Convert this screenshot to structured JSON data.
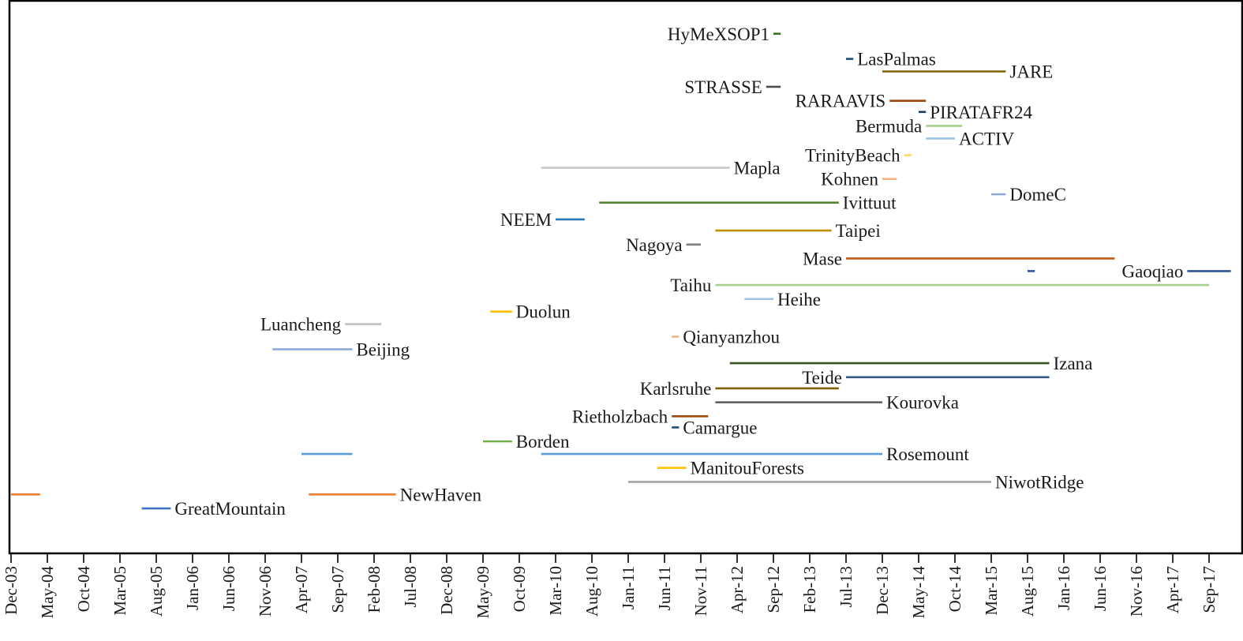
{
  "chart_data": {
    "type": "timeline",
    "xlim": [
      "2003-12",
      "2017-12"
    ],
    "tick_labels": [
      "Dec-03",
      "May-04",
      "Oct-04",
      "Mar-05",
      "Aug-05",
      "Jan-06",
      "Jun-06",
      "Nov-06",
      "Apr-07",
      "Sep-07",
      "Feb-08",
      "Jul-08",
      "Dec-08",
      "May-09",
      "Oct-09",
      "Mar-10",
      "Aug-10",
      "Jan-11",
      "Jun-11",
      "Nov-11",
      "Apr-12",
      "Sep-12",
      "Feb-13",
      "Jul-13",
      "Dec-13",
      "May-14",
      "Oct-14",
      "Mar-15",
      "Aug-15",
      "Jan-16",
      "Jun-16",
      "Nov-16",
      "Apr-17",
      "Sep-17"
    ],
    "segments": [
      {
        "name": "HyMeXSOP1",
        "start": "2012-09",
        "end": "2012-10",
        "level": 36.6,
        "color": "#3f6e23",
        "label_side": "left"
      },
      {
        "name": "LasPalmas",
        "start": "2013-07",
        "end": "2013-08",
        "level": 34.8,
        "color": "#1e4e79",
        "label_side": "right"
      },
      {
        "name": "JARE",
        "start": "2013-12",
        "end": "2015-05",
        "level": 33.9,
        "color": "#7f6000",
        "label_side": "right"
      },
      {
        "name": "STRASSE",
        "start": "2012-08",
        "end": "2012-10",
        "level": 32.8,
        "color": "#4d4d4d",
        "label_side": "left"
      },
      {
        "name": "RARAAVIS",
        "start": "2014-01",
        "end": "2014-06",
        "level": 31.8,
        "color": "#9e480e",
        "label_side": "left"
      },
      {
        "name": "PIRATAFR24",
        "start": "2014-05",
        "end": "2014-06",
        "level": 31.0,
        "color": "#203864",
        "label_side": "right"
      },
      {
        "name": "Bermuda",
        "start": "2014-06",
        "end": "2014-11",
        "level": 30.0,
        "color": "#a9d18e",
        "label_side": "left"
      },
      {
        "name": "ACTIV",
        "start": "2014-06",
        "end": "2014-10",
        "level": 29.1,
        "color": "#9dc3e6",
        "label_side": "right"
      },
      {
        "name": "TrinityBeach",
        "start": "2014-03",
        "end": "2014-04",
        "level": 27.9,
        "color": "#ffd966",
        "label_side": "left"
      },
      {
        "name": "Kohnen",
        "start": "2013-12",
        "end": "2014-02",
        "level": 26.2,
        "color": "#f4b183",
        "label_side": "left"
      },
      {
        "name": "Mapla",
        "start": "2010-01",
        "end": "2012-03",
        "level": 27.0,
        "color": "#c9c9c9",
        "label_side": "right"
      },
      {
        "name": "DomeC",
        "start": "2015-03",
        "end": "2015-05",
        "level": 25.1,
        "color": "#8faadc",
        "label_side": "right"
      },
      {
        "name": "Ivittuut",
        "start": "2010-09",
        "end": "2013-06",
        "level": 24.5,
        "color": "#548235",
        "label_side": "right"
      },
      {
        "name": "NEEM",
        "start": "2010-03",
        "end": "2010-07",
        "level": 23.3,
        "color": "#2e75b6",
        "label_side": "left"
      },
      {
        "name": "Taipei",
        "start": "2012-01",
        "end": "2013-05",
        "level": 22.5,
        "color": "#bf9000",
        "label_side": "right"
      },
      {
        "name": "Nagoya",
        "start": "2011-09",
        "end": "2011-11",
        "level": 21.5,
        "color": "#7f7f7f",
        "label_side": "left"
      },
      {
        "name": "Mase",
        "start": "2013-07",
        "end": "2016-08",
        "level": 20.5,
        "color": "#c55a11",
        "label_side": "left"
      },
      {
        "name": "Gaoqiao",
        "start": "2015-08",
        "end": "2015-09",
        "level": 19.6,
        "color": "#2f5597",
        "label_side": "none"
      },
      {
        "name": "Gaoqiao",
        "start": "2017-06",
        "end": "2017-12",
        "level": 19.6,
        "color": "#2f5597",
        "label_side": "left"
      },
      {
        "name": "Taihu",
        "start": "2012-01",
        "end": "2017-09",
        "level": 18.6,
        "color": "#a9d18e",
        "label_side": "left"
      },
      {
        "name": "Heihe",
        "start": "2012-05",
        "end": "2012-09",
        "level": 17.6,
        "color": "#9dc3e6",
        "label_side": "right"
      },
      {
        "name": "Duolun",
        "start": "2009-06",
        "end": "2009-09",
        "level": 16.7,
        "color": "#ffc000",
        "label_side": "right"
      },
      {
        "name": "Luancheng",
        "start": "2007-10",
        "end": "2008-03",
        "level": 15.8,
        "color": "#bfbfbf",
        "label_side": "left"
      },
      {
        "name": "Qianyanzhou",
        "start": "2011-07",
        "end": "2011-08",
        "level": 14.9,
        "color": "#f4b183",
        "label_side": "right"
      },
      {
        "name": "Beijing",
        "start": "2006-12",
        "end": "2007-11",
        "level": 14.0,
        "color": "#8faadc",
        "label_side": "right"
      },
      {
        "name": "Izana",
        "start": "2012-03",
        "end": "2015-11",
        "level": 13.0,
        "color": "#375623",
        "label_side": "right"
      },
      {
        "name": "Teide",
        "start": "2013-07",
        "end": "2015-11",
        "level": 12.0,
        "color": "#2e5b8c",
        "label_side": "left"
      },
      {
        "name": "Karlsruhe",
        "start": "2012-01",
        "end": "2013-06",
        "level": 11.2,
        "color": "#7f6000",
        "label_side": "left"
      },
      {
        "name": "Kourovka",
        "start": "2012-01",
        "end": "2013-12",
        "level": 10.2,
        "color": "#595959",
        "label_side": "right"
      },
      {
        "name": "Rietholzbach",
        "start": "2011-07",
        "end": "2011-12",
        "level": 9.2,
        "color": "#9e480e",
        "label_side": "left"
      },
      {
        "name": "Camargue",
        "start": "2011-07",
        "end": "2011-08",
        "level": 8.4,
        "color": "#1e4e79",
        "label_side": "right"
      },
      {
        "name": "Borden",
        "start": "2009-05",
        "end": "2009-09",
        "level": 7.4,
        "color": "#70ad47",
        "label_side": "right"
      },
      {
        "name": "",
        "start": "2007-04",
        "end": "2007-11",
        "level": 6.5,
        "color": "#5b9bd5",
        "label_side": "none"
      },
      {
        "name": "Rosemount",
        "start": "2010-01",
        "end": "2013-12",
        "level": 6.5,
        "color": "#5b9bd5",
        "label_side": "right"
      },
      {
        "name": "ManitouForests",
        "start": "2011-05",
        "end": "2011-09",
        "level": 5.5,
        "color": "#ffc000",
        "label_side": "right"
      },
      {
        "name": "NiwotRidge",
        "start": "2011-01",
        "end": "2015-03",
        "level": 4.5,
        "color": "#a5a5a5",
        "label_side": "right"
      },
      {
        "name": "",
        "start": "2003-12",
        "end": "2004-04",
        "level": 3.6,
        "color": "#ed7d31",
        "label_side": "none"
      },
      {
        "name": "NewHaven",
        "start": "2007-05",
        "end": "2008-05",
        "level": 3.6,
        "color": "#ed7d31",
        "label_side": "right"
      },
      {
        "name": "GreatMountain",
        "start": "2005-06",
        "end": "2005-10",
        "level": 2.6,
        "color": "#4472c4",
        "label_side": "right"
      }
    ]
  }
}
